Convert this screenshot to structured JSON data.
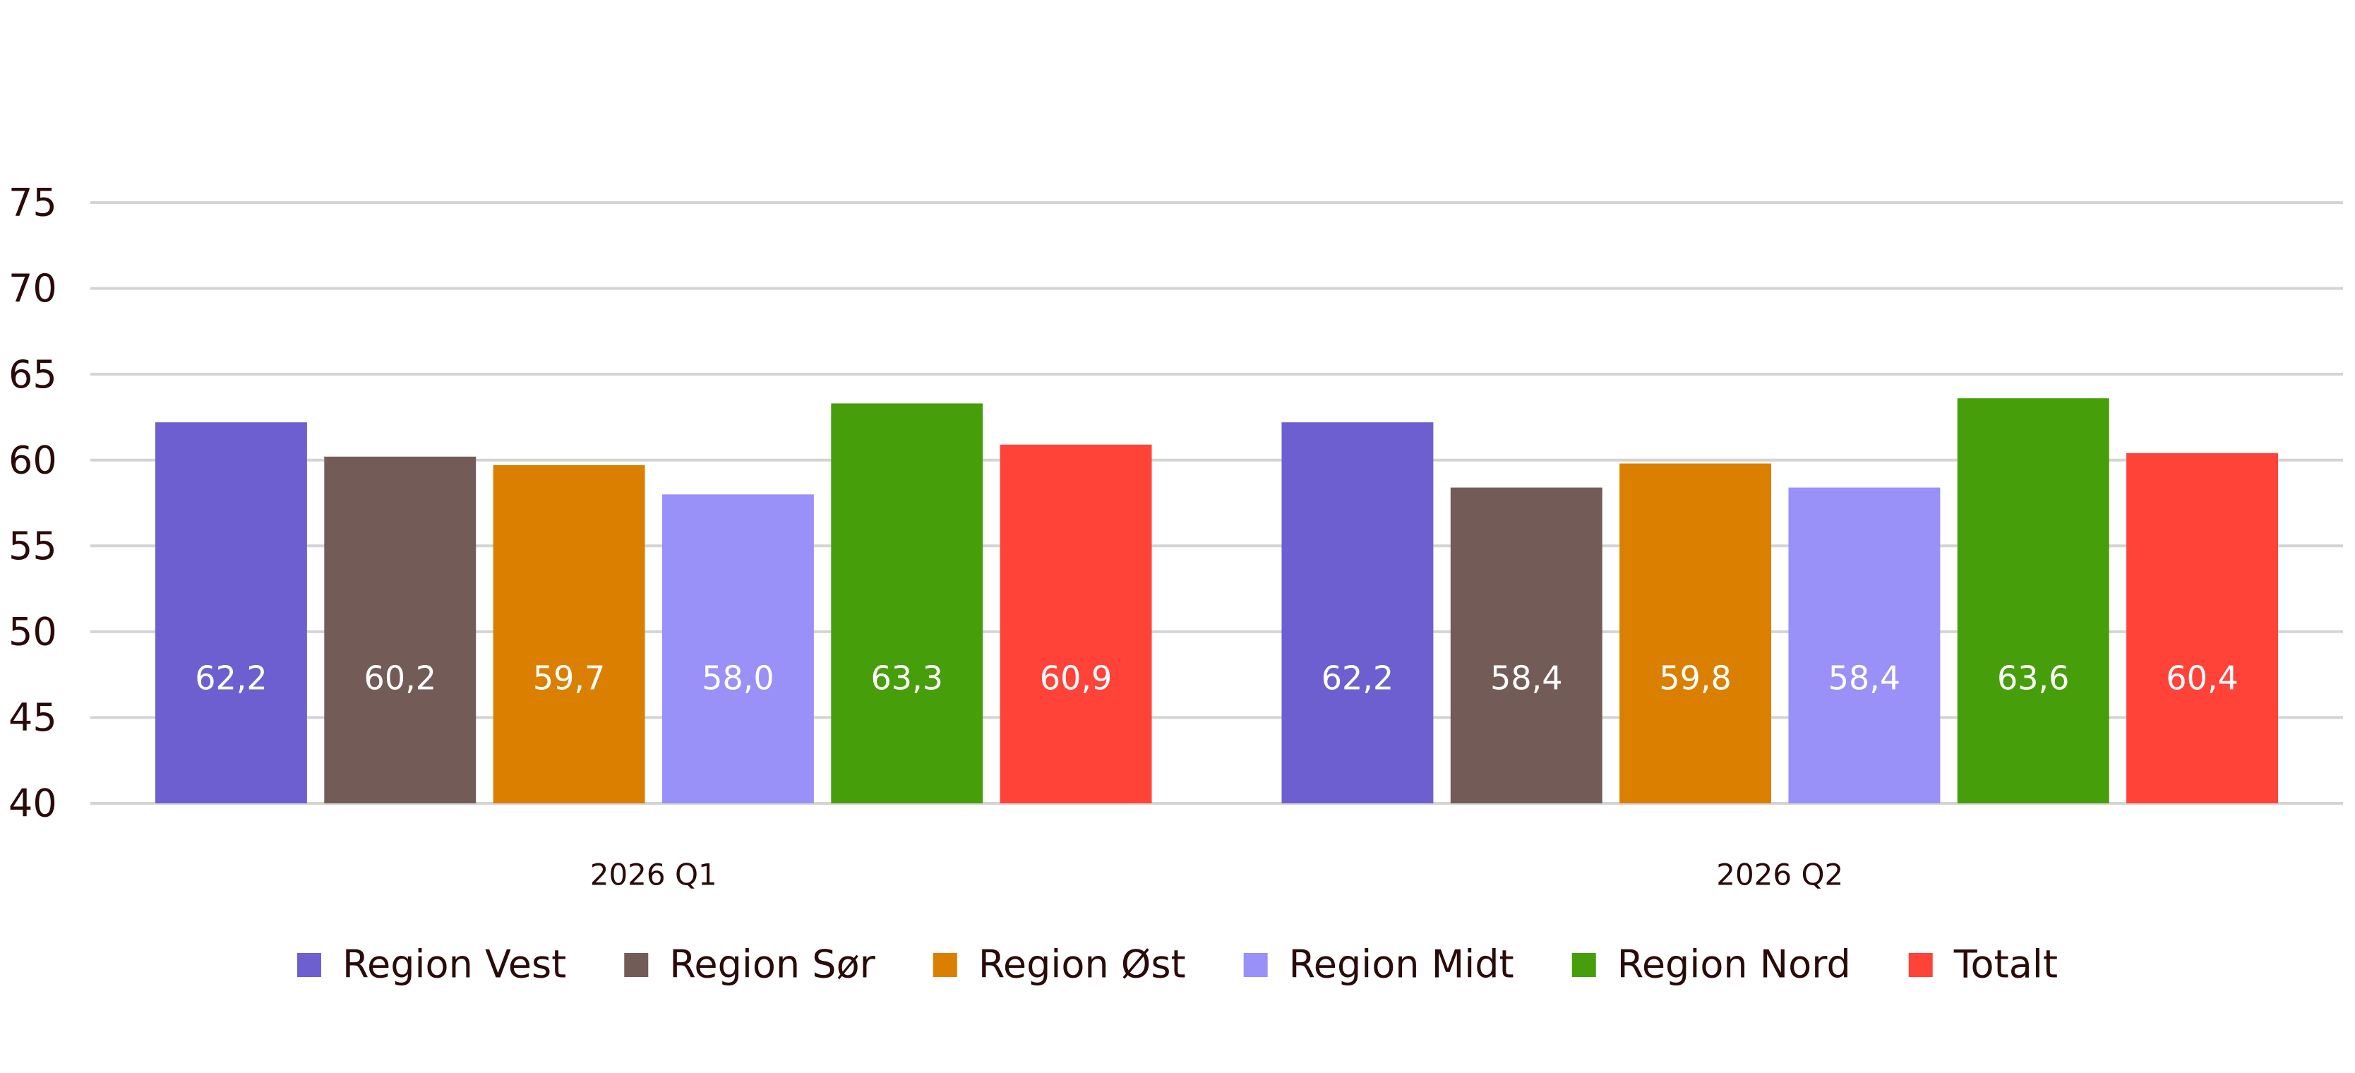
{
  "chart_data": {
    "type": "bar",
    "categories": [
      "2026 Q1",
      "2026 Q2"
    ],
    "series": [
      {
        "name": "Region Vest",
        "color": "#6e5fd0",
        "values": [
          62.2,
          62.2
        ],
        "value_labels": [
          "62,2",
          "62,2"
        ]
      },
      {
        "name": "Region Sør",
        "color": "#735c57",
        "values": [
          60.2,
          58.4
        ],
        "value_labels": [
          "60,2",
          "58,4"
        ]
      },
      {
        "name": "Region Øst",
        "color": "#db7f00",
        "values": [
          59.7,
          59.8
        ],
        "value_labels": [
          "59,7",
          "59,8"
        ]
      },
      {
        "name": "Region Midt",
        "color": "#9990f8",
        "values": [
          58.0,
          58.4
        ],
        "value_labels": [
          "58,0",
          "58,4"
        ]
      },
      {
        "name": "Region Nord",
        "color": "#479e0b",
        "values": [
          63.3,
          63.6
        ],
        "value_labels": [
          "63,3",
          "63,6"
        ]
      },
      {
        "name": "Totalt",
        "color": "#ff4338",
        "values": [
          60.9,
          60.4
        ],
        "value_labels": [
          "60,9",
          "60,4"
        ]
      }
    ],
    "ylim": [
      40,
      75
    ],
    "yticks": [
      40,
      45,
      50,
      55,
      60,
      65,
      70,
      75
    ],
    "grid": true,
    "legend": "bottom"
  }
}
